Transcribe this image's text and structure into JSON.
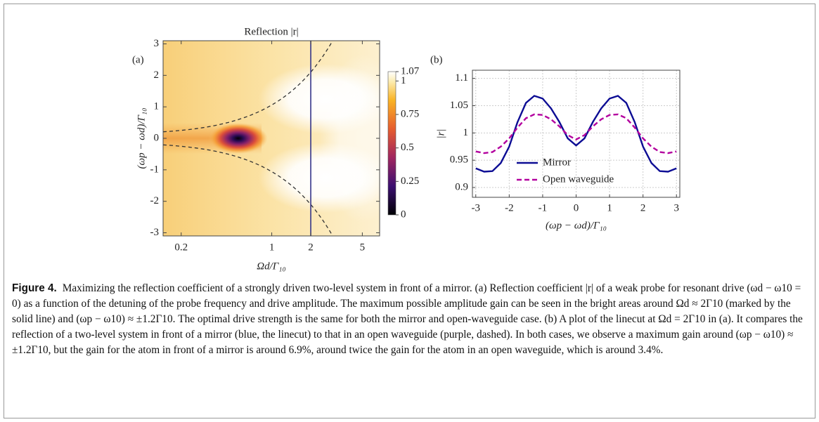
{
  "chart_data": [
    {
      "type": "heatmap",
      "panel_label": "(a)",
      "title": "Reflection |r|",
      "xlabel": "Ωd/Γ₁₀",
      "ylabel": "(ωp − ωd)/Γ₁₀",
      "xscale": "log",
      "xlim": [
        0.145,
        6.8
      ],
      "xticks": [
        0.2,
        1,
        2,
        5
      ],
      "ylim": [
        -3.1,
        3.1
      ],
      "yticks": [
        -3,
        -2,
        -1,
        0,
        1,
        2,
        3
      ],
      "linecut_x": 2,
      "linecut_color": "#34348a",
      "colorbar": {
        "lim": [
          0,
          1.07
        ],
        "ticks": [
          0,
          0.25,
          0.5,
          0.75,
          1,
          1.07
        ]
      }
    },
    {
      "type": "line",
      "panel_label": "(b)",
      "xlabel": "(ωp − ωd)/Γ₁₀",
      "ylabel": "|r|",
      "x": [
        -3,
        -2.75,
        -2.5,
        -2.25,
        -2,
        -1.75,
        -1.5,
        -1.25,
        -1,
        -0.75,
        -0.5,
        -0.25,
        0,
        0.25,
        0.5,
        0.75,
        1,
        1.25,
        1.5,
        1.75,
        2,
        2.25,
        2.5,
        2.75,
        3
      ],
      "series": [
        {
          "name": "Mirror",
          "color": "#0c0c94",
          "dash": false,
          "values": [
            0.935,
            0.929,
            0.93,
            0.945,
            0.975,
            1.02,
            1.055,
            1.068,
            1.063,
            1.045,
            1.02,
            0.99,
            0.977,
            0.99,
            1.02,
            1.045,
            1.063,
            1.068,
            1.055,
            1.02,
            0.975,
            0.945,
            0.93,
            0.929,
            0.935
          ]
        },
        {
          "name": "Open waveguide",
          "color": "#b3009e",
          "dash": true,
          "values": [
            0.966,
            0.963,
            0.965,
            0.975,
            0.99,
            1.01,
            1.027,
            1.034,
            1.033,
            1.025,
            1.012,
            0.996,
            0.988,
            0.996,
            1.012,
            1.025,
            1.033,
            1.034,
            1.027,
            1.01,
            0.99,
            0.975,
            0.965,
            0.963,
            0.966
          ]
        }
      ],
      "xlim": [
        -3.1,
        3.1
      ],
      "xticks": [
        -3,
        -2,
        -1,
        0,
        1,
        2,
        3
      ],
      "ylim": [
        0.882,
        1.115
      ],
      "yticks": [
        0.9,
        0.95,
        1,
        1.05,
        1.1
      ],
      "grid": true,
      "legend": "lower-left"
    }
  ],
  "caption": {
    "label": "Figure 4.",
    "text": "Maximizing the reflection coefficient of a strongly driven two-level system in front of a mirror. (a) Reflection coefficient |r| of a weak probe for resonant drive (ωd − ω10 = 0) as a function of the detuning of the probe frequency and drive amplitude. The maximum possible amplitude gain can be seen in the bright areas around Ωd ≈ 2Γ10 (marked by the solid line) and (ωp − ω10) ≈ ±1.2Γ10. The optimal drive strength is the same for both the mirror and open-waveguide case. (b) A plot of the linecut at Ωd = 2Γ10 in (a). It compares the reflection of a two-level system in front of a mirror (blue, the linecut) to that in an open waveguide (purple, dashed). In both cases, we observe a maximum gain around (ωp − ω10) ≈ ±1.2Γ10, but the gain for the atom in front of a mirror is around 6.9%, around twice the gain for the atom in an open waveguide, which is around 3.4%."
  }
}
